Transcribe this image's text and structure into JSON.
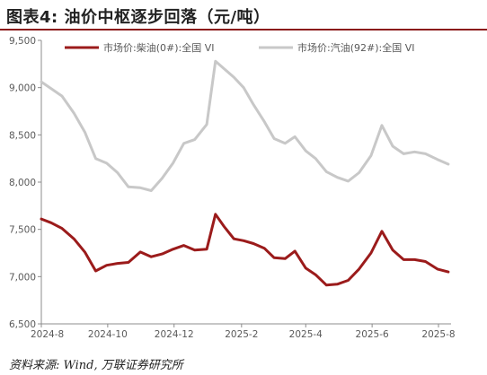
{
  "figure": {
    "title": "图表4:  油价中枢逐步回落（元/吨）",
    "source": "资料来源: Wind, 万联证券研究所"
  },
  "colors": {
    "diesel": "#9b1b1b",
    "gasoline": "#c8c8c8",
    "title_rule": "#8b1a1a",
    "axis": "#8c8c8c"
  },
  "chart_data": {
    "type": "line",
    "x_ticks": [
      "2024-8",
      "2024-10",
      "2024-12",
      "2025-2",
      "2025-4",
      "2025-6",
      "2025-8"
    ],
    "y_ticks": [
      "6,500",
      "7,000",
      "7,500",
      "8,000",
      "8,500",
      "9,000",
      "9,500"
    ],
    "ylim": [
      6500,
      9500
    ],
    "grid": false,
    "legend_position": "top",
    "series": [
      {
        "name": "市场价:柴油(0#):全国 VI",
        "color": "#9b1b1b",
        "points": [
          [
            "2024-08-01",
            7610
          ],
          [
            "2024-08-10",
            7570
          ],
          [
            "2024-08-20",
            7510
          ],
          [
            "2024-08-31",
            7400
          ],
          [
            "2024-09-10",
            7260
          ],
          [
            "2024-09-20",
            7060
          ],
          [
            "2024-09-30",
            7120
          ],
          [
            "2024-10-10",
            7140
          ],
          [
            "2024-10-20",
            7150
          ],
          [
            "2024-10-31",
            7260
          ],
          [
            "2024-11-10",
            7210
          ],
          [
            "2024-11-20",
            7240
          ],
          [
            "2024-11-30",
            7290
          ],
          [
            "2024-12-10",
            7330
          ],
          [
            "2024-12-20",
            7280
          ],
          [
            "2024-12-31",
            7290
          ],
          [
            "2025-01-08",
            7660
          ],
          [
            "2025-01-16",
            7530
          ],
          [
            "2025-01-25",
            7400
          ],
          [
            "2025-02-03",
            7380
          ],
          [
            "2025-02-12",
            7350
          ],
          [
            "2025-02-22",
            7300
          ],
          [
            "2025-03-03",
            7200
          ],
          [
            "2025-03-13",
            7190
          ],
          [
            "2025-03-22",
            7270
          ],
          [
            "2025-04-01",
            7090
          ],
          [
            "2025-04-10",
            7020
          ],
          [
            "2025-04-20",
            6910
          ],
          [
            "2025-04-30",
            6920
          ],
          [
            "2025-05-10",
            6960
          ],
          [
            "2025-05-20",
            7080
          ],
          [
            "2025-05-31",
            7250
          ],
          [
            "2025-06-10",
            7480
          ],
          [
            "2025-06-20",
            7280
          ],
          [
            "2025-06-30",
            7180
          ],
          [
            "2025-07-10",
            7180
          ],
          [
            "2025-07-20",
            7160
          ],
          [
            "2025-07-31",
            7080
          ],
          [
            "2025-08-10",
            7050
          ]
        ]
      },
      {
        "name": "市场价:汽油(92#):全国 VI",
        "color": "#c8c8c8",
        "points": [
          [
            "2024-08-01",
            9060
          ],
          [
            "2024-08-10",
            8990
          ],
          [
            "2024-08-20",
            8910
          ],
          [
            "2024-08-31",
            8730
          ],
          [
            "2024-09-10",
            8530
          ],
          [
            "2024-09-20",
            8250
          ],
          [
            "2024-09-30",
            8200
          ],
          [
            "2024-10-10",
            8100
          ],
          [
            "2024-10-20",
            7950
          ],
          [
            "2024-10-31",
            7940
          ],
          [
            "2024-11-10",
            7910
          ],
          [
            "2024-11-20",
            8040
          ],
          [
            "2024-11-30",
            8200
          ],
          [
            "2024-12-10",
            8410
          ],
          [
            "2024-12-20",
            8450
          ],
          [
            "2024-12-31",
            8610
          ],
          [
            "2025-01-08",
            9280
          ],
          [
            "2025-01-16",
            9200
          ],
          [
            "2025-01-25",
            9110
          ],
          [
            "2025-02-03",
            9000
          ],
          [
            "2025-02-12",
            8820
          ],
          [
            "2025-02-22",
            8640
          ],
          [
            "2025-03-03",
            8460
          ],
          [
            "2025-03-13",
            8410
          ],
          [
            "2025-03-22",
            8480
          ],
          [
            "2025-04-01",
            8330
          ],
          [
            "2025-04-10",
            8250
          ],
          [
            "2025-04-20",
            8110
          ],
          [
            "2025-04-30",
            8050
          ],
          [
            "2025-05-10",
            8010
          ],
          [
            "2025-05-20",
            8100
          ],
          [
            "2025-05-31",
            8280
          ],
          [
            "2025-06-10",
            8600
          ],
          [
            "2025-06-20",
            8380
          ],
          [
            "2025-06-30",
            8300
          ],
          [
            "2025-07-10",
            8320
          ],
          [
            "2025-07-20",
            8300
          ],
          [
            "2025-07-31",
            8240
          ],
          [
            "2025-08-10",
            8190
          ]
        ]
      }
    ]
  }
}
